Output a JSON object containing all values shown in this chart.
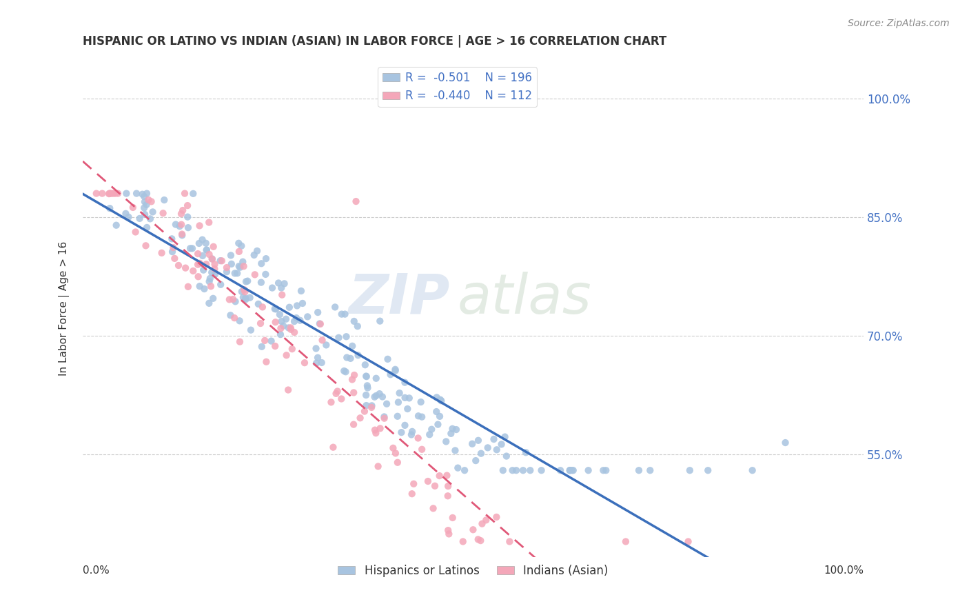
{
  "title": "HISPANIC OR LATINO VS INDIAN (ASIAN) IN LABOR FORCE | AGE > 16 CORRELATION CHART",
  "source": "Source: ZipAtlas.com",
  "ylabel": "In Labor Force | Age > 16",
  "watermark_zip": "ZIP",
  "watermark_atlas": "atlas",
  "blue_R": "-0.501",
  "blue_N": "196",
  "pink_R": "-0.440",
  "pink_N": "112",
  "blue_color": "#a8c4e0",
  "pink_color": "#f4a7b9",
  "blue_line_color": "#3b6fbb",
  "pink_line_color": "#e05878",
  "legend_label_blue": "Hispanics or Latinos",
  "legend_label_pink": "Indians (Asian)",
  "ytick_values": [
    0.55,
    0.7,
    0.85,
    1.0
  ],
  "xlim": [
    0.0,
    1.0
  ],
  "ylim": [
    0.42,
    1.05
  ],
  "blue_seed": 42,
  "pink_seed": 7
}
